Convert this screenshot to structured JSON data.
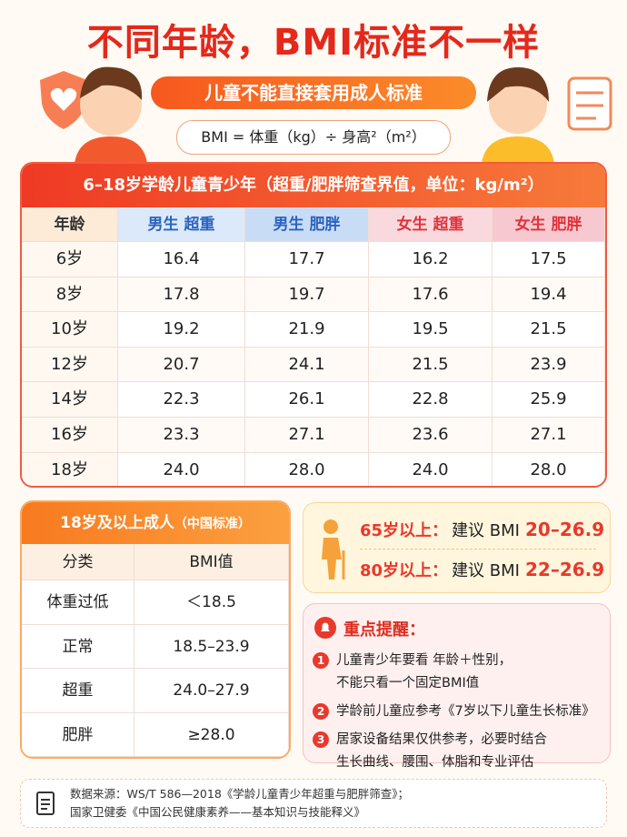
{
  "header": {
    "title": "不同年龄，BMI标准不一样",
    "subtitle": "儿童不能直接套用成人标准",
    "formula": "BMI = 体重（kg）÷ 身高²（m²）"
  },
  "children_table": {
    "title": "6–18岁学龄儿童青少年（超重/肥胖筛查界值，单位：kg/m²）",
    "columns": [
      "年龄",
      "男生 超重",
      "男生 肥胖",
      "女生 超重",
      "女生 肥胖"
    ],
    "rows": [
      [
        "6岁",
        "16.4",
        "17.7",
        "16.2",
        "17.5"
      ],
      [
        "8岁",
        "17.8",
        "19.7",
        "17.6",
        "19.4"
      ],
      [
        "10岁",
        "19.2",
        "21.9",
        "19.5",
        "21.5"
      ],
      [
        "12岁",
        "20.7",
        "24.1",
        "21.5",
        "23.9"
      ],
      [
        "14岁",
        "22.3",
        "26.1",
        "22.8",
        "25.9"
      ],
      [
        "16岁",
        "23.3",
        "27.1",
        "23.6",
        "27.1"
      ],
      [
        "18岁",
        "24.0",
        "28.0",
        "24.0",
        "28.0"
      ]
    ]
  },
  "adult_table": {
    "title": "18岁及以上成人",
    "note": "（中国标准）",
    "columns": [
      "分类",
      "BMI值"
    ],
    "rows": [
      [
        "体重过低",
        "＜18.5"
      ],
      [
        "正常",
        "18.5–23.9"
      ],
      [
        "超重",
        "24.0–27.9"
      ],
      [
        "肥胖",
        "≥28.0"
      ]
    ]
  },
  "elderly": [
    {
      "label": "65岁以上：",
      "text": "建议 BMI",
      "value": "20–26.9"
    },
    {
      "label": "80岁以上：",
      "text": "建议 BMI",
      "value": "22–26.9"
    }
  ],
  "reminders": {
    "title": "重点提醒：",
    "items": [
      {
        "number": "1",
        "lines": [
          "儿童青少年要看 年龄＋性别，",
          "不能只看一个固定BMI值"
        ]
      },
      {
        "number": "2",
        "lines": [
          "学龄前儿童应参考《7岁以下儿童生长标准》"
        ]
      },
      {
        "number": "3",
        "lines": [
          "居家设备结果仅供参考，必要时结合",
          "生长曲线、腰围、体脂和专业评估"
        ]
      }
    ]
  },
  "source": {
    "lines": [
      "数据来源：WS/T 586—2018《学龄儿童青少年超重与肥胖筛查》；",
      "国家卫健委《中国公民健康素养——基本知识与技能释义》"
    ]
  }
}
